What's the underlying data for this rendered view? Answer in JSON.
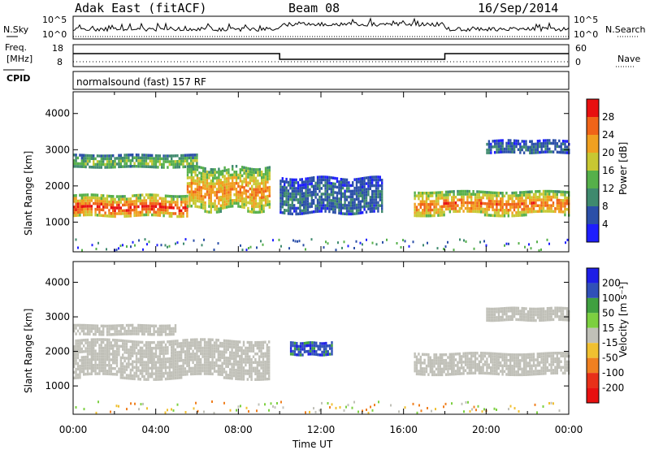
{
  "header": {
    "station": "Adak East (fitACF)",
    "beam": "Beam 08",
    "date": "16/Sep/2014"
  },
  "left_labels": {
    "nsky": "N.Sky",
    "freq": "Freq.",
    "mhz": "[MHz]",
    "cpid": "CPID"
  },
  "right_labels": {
    "nsearch": "N.Search",
    "nave": "Nave"
  },
  "noise_panel": {
    "yticks_left": [
      "10^5",
      "10^0"
    ],
    "yticks_right": [
      "10^5",
      "10^0"
    ]
  },
  "freq_panel": {
    "yticks_left": [
      "18",
      "8"
    ],
    "yticks_right": [
      "60",
      "0"
    ]
  },
  "cpid_text": "normalsound (fast) 157 RF",
  "colors": {
    "power": [
      "#1e1eff",
      "#2b4fa8",
      "#3f8a6e",
      "#56b04a",
      "#c8c832",
      "#f0a020",
      "#f06418",
      "#e81010"
    ],
    "velocity": [
      "#1e1ee6",
      "#3050b8",
      "#40a040",
      "#7cd040",
      "#c0c0b8",
      "#f0c030",
      "#f08020",
      "#e83018",
      "#e81010"
    ]
  },
  "chart_data": [
    {
      "type": "heatmap",
      "name": "power",
      "ylabel": "Slant Range [km]",
      "ylim": [
        180,
        4600
      ],
      "yticks": [
        1000,
        2000,
        3000,
        4000
      ],
      "xlim": [
        0,
        24
      ],
      "colorbar": {
        "label": "Power [dB]",
        "ticks": [
          "28",
          "24",
          "20",
          "16",
          "12",
          "8",
          "4"
        ],
        "range": [
          0,
          30
        ]
      },
      "features": [
        {
          "t": [
            0,
            5.5
          ],
          "range": [
            1150,
            1800
          ],
          "power": 26
        },
        {
          "t": [
            5.5,
            9.5
          ],
          "range": [
            1300,
            2600
          ],
          "power": 22
        },
        {
          "t": [
            0,
            6
          ],
          "range": [
            2500,
            2900
          ],
          "power": 14
        },
        {
          "t": [
            10,
            15
          ],
          "range": [
            1200,
            2300
          ],
          "power": 8
        },
        {
          "t": [
            16.5,
            24
          ],
          "range": [
            1200,
            1900
          ],
          "power": 24
        },
        {
          "t": [
            20,
            24
          ],
          "range": [
            2900,
            3300
          ],
          "power": 8
        }
      ]
    },
    {
      "type": "heatmap",
      "name": "velocity",
      "ylabel": "Slant Range [km]",
      "ylim": [
        180,
        4600
      ],
      "yticks": [
        1000,
        2000,
        3000,
        4000
      ],
      "xlim": [
        0,
        24
      ],
      "xlabel": "Time UT",
      "xticks": [
        "00:00",
        "04:00",
        "08:00",
        "12:00",
        "16:00",
        "20:00",
        "00:00"
      ],
      "colorbar": {
        "label": "Velocity [m s⁻¹]",
        "ticks": [
          "200",
          "100",
          "50",
          "15",
          "-15",
          "-50",
          "-100",
          "-200"
        ],
        "range": [
          -250,
          250
        ]
      },
      "features": [
        {
          "t": [
            0,
            9.5
          ],
          "range": [
            1200,
            2400
          ],
          "velocity": 0
        },
        {
          "t": [
            0,
            5
          ],
          "range": [
            2500,
            2800
          ],
          "velocity": 0
        },
        {
          "t": [
            10.5,
            12.5
          ],
          "range": [
            1900,
            2300
          ],
          "velocity": 150
        },
        {
          "t": [
            16.5,
            24
          ],
          "range": [
            1300,
            2000
          ],
          "velocity": 0
        },
        {
          "t": [
            20,
            24
          ],
          "range": [
            2900,
            3300
          ],
          "velocity": 0
        }
      ]
    }
  ]
}
